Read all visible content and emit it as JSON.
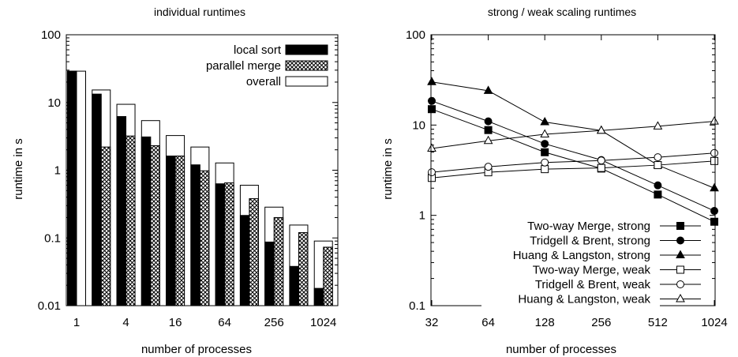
{
  "chart_data": [
    {
      "type": "bar",
      "title": "individual runtimes",
      "xlabel": "number of processes",
      "ylabel": "runtime in s",
      "yscale": "log",
      "ylim": [
        0.01,
        100
      ],
      "ytick_labels": [
        "0.01",
        "0.1",
        "1",
        "10",
        "100"
      ],
      "categories": [
        "1",
        "2",
        "4",
        "8",
        "16",
        "32",
        "64",
        "128",
        "256",
        "512",
        "1024"
      ],
      "xtick_labels": [
        "1",
        "",
        "4",
        "",
        "16",
        "",
        "64",
        "",
        "256",
        "",
        "1024"
      ],
      "legend_position": "top-right",
      "series": [
        {
          "name": "local sort",
          "pattern": "solid-black",
          "values": [
            29,
            13.3,
            6.2,
            3.1,
            1.62,
            1.2,
            0.63,
            0.215,
            0.087,
            0.038,
            0.018
          ]
        },
        {
          "name": "parallel merge",
          "pattern": "crosshatch",
          "values": [
            null,
            2.2,
            3.2,
            2.3,
            1.62,
            0.98,
            0.65,
            0.38,
            0.2,
            0.12,
            0.073
          ]
        },
        {
          "name": "overall",
          "pattern": "white",
          "values": [
            29,
            15.3,
            9.4,
            5.4,
            3.25,
            2.2,
            1.28,
            0.6,
            0.285,
            0.155,
            0.09
          ]
        }
      ]
    },
    {
      "type": "line",
      "title": "strong / weak scaling runtimes",
      "xlabel": "number of processes",
      "ylabel": "runtime in s",
      "xscale": "log2",
      "yscale": "log",
      "x": [
        32,
        64,
        128,
        256,
        512,
        1024
      ],
      "xtick_labels": [
        "32",
        "64",
        "128",
        "256",
        "512",
        "1024"
      ],
      "ytick_labels": [
        "0.1",
        "1",
        "10",
        "100"
      ],
      "ylim": [
        0.1,
        100
      ],
      "legend_position": "bottom-right",
      "series": [
        {
          "name": "Two-way Merge, strong",
          "marker": "filled-square",
          "values": [
            15,
            8.8,
            5.0,
            3.3,
            1.7,
            0.85
          ]
        },
        {
          "name": "Tridgell & Brent, strong",
          "marker": "filled-circle",
          "values": [
            18.5,
            11,
            6.2,
            4.1,
            2.15,
            1.12
          ]
        },
        {
          "name": "Huang & Langston, strong",
          "marker": "filled-triangle",
          "values": [
            30,
            24,
            10.8,
            8.7,
            3.6,
            2.0
          ]
        },
        {
          "name": "Two-way Merge, weak",
          "marker": "open-square",
          "values": [
            2.6,
            3.0,
            3.25,
            3.35,
            3.6,
            4.0
          ]
        },
        {
          "name": "Tridgell & Brent, weak",
          "marker": "open-circle",
          "values": [
            3.0,
            3.45,
            3.85,
            4.05,
            4.4,
            4.9
          ]
        },
        {
          "name": "Huang & Langston, weak",
          "marker": "open-triangle",
          "values": [
            5.5,
            6.7,
            7.9,
            8.7,
            9.7,
            11
          ]
        }
      ]
    }
  ]
}
